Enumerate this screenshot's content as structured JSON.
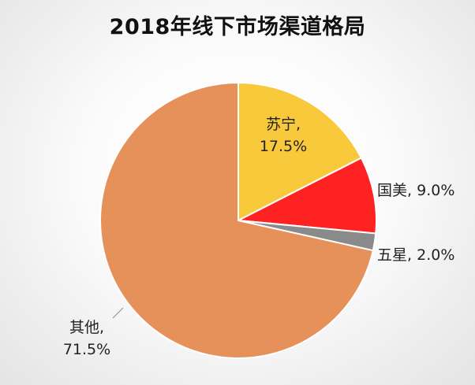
{
  "chart_data": {
    "type": "pie",
    "title": "2018年线下市场渠道格局",
    "slices": [
      {
        "name": "苏宁",
        "value": 17.5,
        "label": "17.5%",
        "color": "#f9c93c"
      },
      {
        "name": "国美",
        "value": 9.0,
        "label": "9.0%",
        "color": "#ff2222"
      },
      {
        "name": "五星",
        "value": 2.0,
        "label": "2.0%",
        "color": "#8a8a8a"
      },
      {
        "name": "其他",
        "value": 71.5,
        "label": "71.5%",
        "color": "#e6915a"
      }
    ],
    "start_angle_deg": 0,
    "direction": "clockwise",
    "legend": "none",
    "data_label_format": "name, percent"
  }
}
